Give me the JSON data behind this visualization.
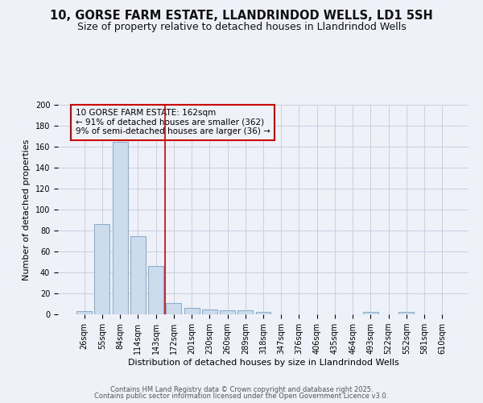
{
  "title1": "10, GORSE FARM ESTATE, LLANDRINDOD WELLS, LD1 5SH",
  "title2": "Size of property relative to detached houses in Llandrindod Wells",
  "xlabel": "Distribution of detached houses by size in Llandrindod Wells",
  "ylabel": "Number of detached properties",
  "bar_labels": [
    "26sqm",
    "55sqm",
    "84sqm",
    "114sqm",
    "143sqm",
    "172sqm",
    "201sqm",
    "230sqm",
    "260sqm",
    "289sqm",
    "318sqm",
    "347sqm",
    "376sqm",
    "406sqm",
    "435sqm",
    "464sqm",
    "493sqm",
    "522sqm",
    "552sqm",
    "581sqm",
    "610sqm"
  ],
  "bar_values": [
    3,
    86,
    165,
    75,
    46,
    11,
    6,
    5,
    4,
    4,
    2,
    0,
    0,
    0,
    0,
    0,
    2,
    0,
    2,
    0,
    0
  ],
  "bar_color": "#cddcec",
  "bar_edgecolor": "#8aafd0",
  "bar_linewidth": 0.8,
  "vline_x": 4.5,
  "vline_color": "#cc0000",
  "annotation_line1": "10 GORSE FARM ESTATE: 162sqm",
  "annotation_line2": "← 91% of detached houses are smaller (362)",
  "annotation_line3": "9% of semi-detached houses are larger (36) →",
  "annotation_box_color": "#cc0000",
  "ylim": [
    0,
    200
  ],
  "yticks": [
    0,
    20,
    40,
    60,
    80,
    100,
    120,
    140,
    160,
    180,
    200
  ],
  "grid_color": "#c8cfe0",
  "bg_color": "#eef2f8",
  "footer1": "Contains HM Land Registry data © Crown copyright and database right 2025.",
  "footer2": "Contains public sector information licensed under the Open Government Licence v3.0.",
  "title_fontsize": 10.5,
  "subtitle_fontsize": 9,
  "axis_label_fontsize": 8,
  "tick_fontsize": 7,
  "annotation_fontsize": 7.5,
  "footer_fontsize": 6
}
